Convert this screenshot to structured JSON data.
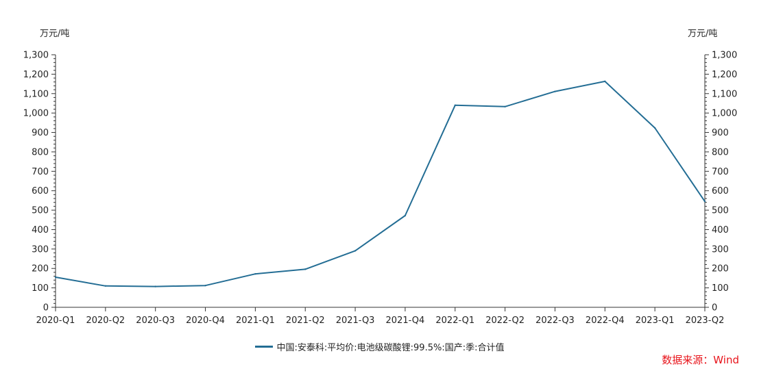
{
  "chart_data": {
    "type": "line",
    "left_unit": "万元/吨",
    "right_unit": "万元/吨",
    "categories": [
      "2020-Q1",
      "2020-Q2",
      "2020-Q3",
      "2020-Q4",
      "2021-Q1",
      "2021-Q2",
      "2021-Q3",
      "2021-Q4",
      "2022-Q1",
      "2022-Q2",
      "2022-Q3",
      "2022-Q4",
      "2023-Q1",
      "2023-Q2"
    ],
    "yticks": [
      0,
      100,
      200,
      300,
      400,
      500,
      600,
      700,
      800,
      900,
      1000,
      1100,
      1200,
      1300
    ],
    "ytick_labels": [
      "0",
      "100",
      "200",
      "300",
      "400",
      "500",
      "600",
      "700",
      "800",
      "900",
      "1,000",
      "1,100",
      "1,200",
      "1,300"
    ],
    "ylim": [
      0,
      1300
    ],
    "series": [
      {
        "name": "中国:安泰科:平均价:电池级碳酸锂:99.5%:国产:季:合计值",
        "color": "#236d94",
        "values": [
          155,
          110,
          107,
          112,
          172,
          196,
          291,
          472,
          1040,
          1033,
          1111,
          1163,
          923,
          545
        ]
      }
    ],
    "grid": false,
    "legend_position": "bottom-center"
  },
  "source_text": "数据来源：Wind"
}
